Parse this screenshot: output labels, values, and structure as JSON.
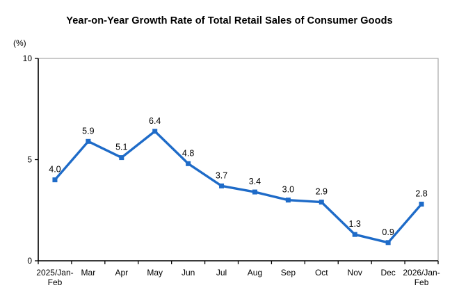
{
  "chart_data": {
    "type": "line",
    "title": "Year-on-Year Growth Rate of Total Retail Sales of Consumer Goods",
    "ylabel": "(%)",
    "xlabel": "",
    "categories": [
      "2025/Jan-\nFeb",
      "Mar",
      "Apr",
      "May",
      "Jun",
      "Jul",
      "Aug",
      "Sep",
      "Oct",
      "Nov",
      "Dec",
      "2026/Jan-\nFeb"
    ],
    "values": [
      4.0,
      5.9,
      5.1,
      6.4,
      4.8,
      3.7,
      3.4,
      3.0,
      2.9,
      1.3,
      0.9,
      2.8
    ],
    "value_labels": [
      "4.0",
      "5.9",
      "5.1",
      "6.4",
      "4.8",
      "3.7",
      "3.4",
      "3.0",
      "2.9",
      "1.3",
      "0.9",
      "2.8"
    ],
    "ylim": [
      0,
      10
    ],
    "yticks": [
      0,
      5,
      10
    ],
    "grid": false,
    "legend": "none",
    "marker": "square",
    "colors": {
      "series_line": "#1E6BC8",
      "axis": "#000000",
      "plot_border": "#a6a6a6",
      "text": "#000000",
      "background": "#ffffff"
    }
  }
}
